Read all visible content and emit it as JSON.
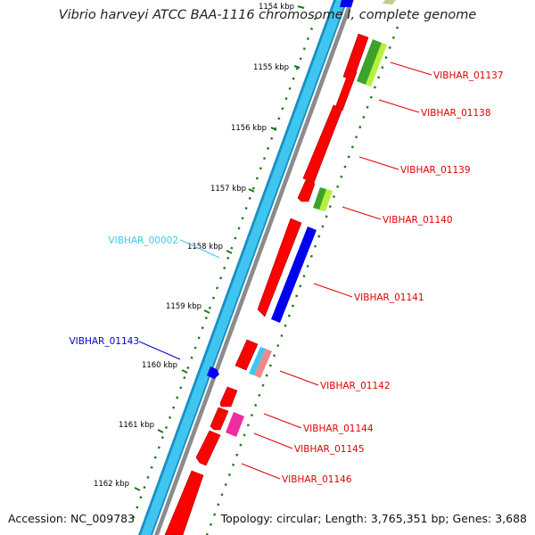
{
  "title": "Vibrio harveyi ATCC BAA-1116 chromosome I, complete genome",
  "accession": "Accession: NC_009783",
  "topology": "Topology: circular; Length: 3,765,351 bp; Genes: 3,688",
  "colors": {
    "background": "#ffffff",
    "backbone_blue": "#3fc6f0",
    "backbone_blue_dark": "#1a8fc4",
    "backbone_gray": "#8c8c8c",
    "cds_red": "#ff0000",
    "cds_blue": "#0000ee",
    "cds_green": "#3aa32a",
    "cds_yellowgreen": "#b6f03a",
    "cds_pink": "#f08a8a",
    "cds_magenta": "#ee2da0",
    "cds_olive": "#c8c890",
    "tick_green": "#1a7a1a",
    "label_red": "#e00000",
    "label_cyan": "#3fc6f0",
    "label_blue": "#0000cc"
  },
  "ticks": [
    {
      "label": "1154 kbp"
    },
    {
      "label": "1155 kbp"
    },
    {
      "label": "1156 kbp"
    },
    {
      "label": "1157 kbp"
    },
    {
      "label": "1158 kbp"
    },
    {
      "label": "1159 kbp"
    },
    {
      "label": "1160 kbp"
    },
    {
      "label": "1161 kbp"
    },
    {
      "label": "1162 kbp"
    }
  ],
  "gene_labels": [
    {
      "name": "VIBHAR_01137"
    },
    {
      "name": "VIBHAR_01138"
    },
    {
      "name": "VIBHAR_01139"
    },
    {
      "name": "VIBHAR_01140"
    },
    {
      "name": "VIBHAR_01141"
    },
    {
      "name": "VIBHAR_01142"
    },
    {
      "name": "VIBHAR_01144"
    },
    {
      "name": "VIBHAR_01145"
    },
    {
      "name": "VIBHAR_01146"
    },
    {
      "name": "VIBHAR_00002"
    },
    {
      "name": "VIBHAR_01143"
    }
  ]
}
